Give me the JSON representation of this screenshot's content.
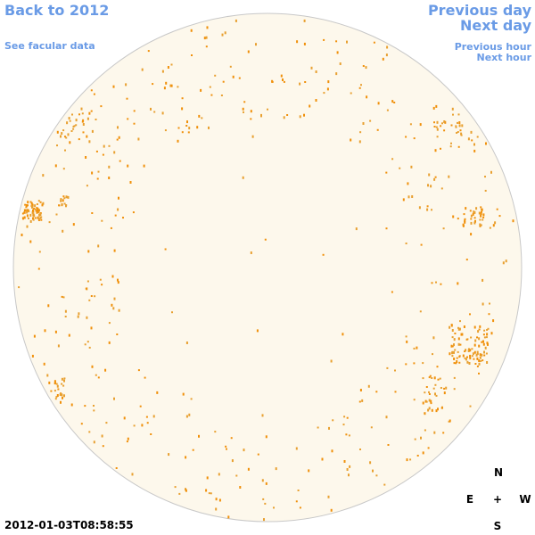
{
  "nav": {
    "back": "Back to 2012",
    "facular": "See facular data",
    "previous_day": "Previous day",
    "next_day": "Next day",
    "previous_hour": "Previous hour",
    "next_hour": "Next hour"
  },
  "timestamp": "2012-01-03T08:58:55",
  "compass": {
    "north": "N",
    "east": "E",
    "center": "+",
    "west": "W",
    "south": "S"
  }
}
